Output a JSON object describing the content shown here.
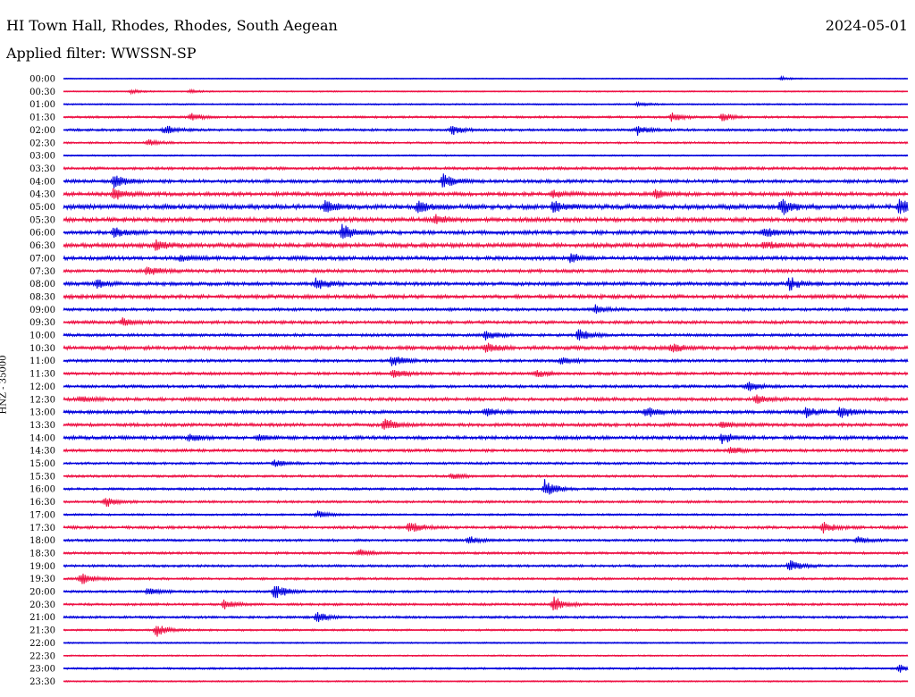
{
  "header": {
    "station": "HI Town Hall, Rhodes, Rhodes, South Aegean",
    "date": "2024-05-01",
    "filter": "Applied filter: WWSSN-SP"
  },
  "chart_data": {
    "type": "line",
    "ylabel": "HNZ - 35000",
    "xlabel": "",
    "title": "HI Town Hall, Rhodes, Rhodes, South Aegean",
    "colors": {
      "odd": "#0000dd",
      "even": "#ee1144"
    },
    "rows": [
      {
        "label": "00:00",
        "amp": 0.4,
        "events": [
          {
            "t": 0.85,
            "a": 1.5
          }
        ]
      },
      {
        "label": "00:30",
        "amp": 0.5,
        "events": [
          {
            "t": 0.08,
            "a": 1.5
          },
          {
            "t": 0.15,
            "a": 1.2
          }
        ]
      },
      {
        "label": "01:00",
        "amp": 0.6,
        "events": [
          {
            "t": 0.68,
            "a": 1.3
          }
        ]
      },
      {
        "label": "01:30",
        "amp": 0.9,
        "events": [
          {
            "t": 0.15,
            "a": 3
          },
          {
            "t": 0.72,
            "a": 3.5
          },
          {
            "t": 0.78,
            "a": 3
          }
        ]
      },
      {
        "label": "02:00",
        "amp": 1.0,
        "events": [
          {
            "t": 0.12,
            "a": 3.5
          },
          {
            "t": 0.46,
            "a": 4
          },
          {
            "t": 0.68,
            "a": 3.5
          }
        ]
      },
      {
        "label": "02:30",
        "amp": 0.8,
        "events": [
          {
            "t": 0.1,
            "a": 2.5
          }
        ]
      },
      {
        "label": "03:00",
        "amp": 0.6,
        "events": []
      },
      {
        "label": "03:30",
        "amp": 1.2,
        "events": []
      },
      {
        "label": "04:00",
        "amp": 1.4,
        "events": [
          {
            "t": 0.06,
            "a": 5
          },
          {
            "t": 0.45,
            "a": 6
          }
        ]
      },
      {
        "label": "04:30",
        "amp": 1.6,
        "events": [
          {
            "t": 0.06,
            "a": 5
          },
          {
            "t": 0.58,
            "a": 3
          },
          {
            "t": 0.7,
            "a": 3.5
          }
        ]
      },
      {
        "label": "05:00",
        "amp": 2.0,
        "events": [
          {
            "t": 0.31,
            "a": 5
          },
          {
            "t": 0.42,
            "a": 5
          },
          {
            "t": 0.58,
            "a": 4
          },
          {
            "t": 0.85,
            "a": 6
          },
          {
            "t": 0.99,
            "a": 6
          }
        ]
      },
      {
        "label": "05:30",
        "amp": 1.8,
        "events": [
          {
            "t": 0.44,
            "a": 4
          }
        ]
      },
      {
        "label": "06:00",
        "amp": 1.6,
        "events": [
          {
            "t": 0.06,
            "a": 4
          },
          {
            "t": 0.33,
            "a": 6
          },
          {
            "t": 0.83,
            "a": 4
          }
        ]
      },
      {
        "label": "06:30",
        "amp": 1.8,
        "events": [
          {
            "t": 0.11,
            "a": 4
          },
          {
            "t": 0.83,
            "a": 3
          }
        ]
      },
      {
        "label": "07:00",
        "amp": 1.6,
        "events": [
          {
            "t": 0.14,
            "a": 3
          },
          {
            "t": 0.6,
            "a": 3.5
          }
        ]
      },
      {
        "label": "07:30",
        "amp": 1.4,
        "events": [
          {
            "t": 0.1,
            "a": 4
          }
        ]
      },
      {
        "label": "08:00",
        "amp": 1.5,
        "events": [
          {
            "t": 0.04,
            "a": 3
          },
          {
            "t": 0.3,
            "a": 5
          },
          {
            "t": 0.86,
            "a": 5
          }
        ]
      },
      {
        "label": "08:30",
        "amp": 1.6,
        "events": []
      },
      {
        "label": "09:00",
        "amp": 1.2,
        "events": [
          {
            "t": 0.63,
            "a": 3
          }
        ]
      },
      {
        "label": "09:30",
        "amp": 1.3,
        "events": [
          {
            "t": 0.07,
            "a": 3
          }
        ]
      },
      {
        "label": "10:00",
        "amp": 1.2,
        "events": [
          {
            "t": 0.5,
            "a": 4
          },
          {
            "t": 0.61,
            "a": 4.5
          }
        ]
      },
      {
        "label": "10:30",
        "amp": 1.6,
        "events": [
          {
            "t": 0.5,
            "a": 4
          },
          {
            "t": 0.72,
            "a": 4
          }
        ]
      },
      {
        "label": "11:00",
        "amp": 1.2,
        "events": [
          {
            "t": 0.39,
            "a": 5
          },
          {
            "t": 0.59,
            "a": 3
          }
        ]
      },
      {
        "label": "11:30",
        "amp": 1.2,
        "events": [
          {
            "t": 0.39,
            "a": 4
          },
          {
            "t": 0.56,
            "a": 3
          }
        ]
      },
      {
        "label": "12:00",
        "amp": 1.2,
        "events": [
          {
            "t": 0.81,
            "a": 4
          }
        ]
      },
      {
        "label": "12:30",
        "amp": 1.4,
        "events": [
          {
            "t": 0.02,
            "a": 3
          },
          {
            "t": 0.82,
            "a": 4
          }
        ]
      },
      {
        "label": "13:00",
        "amp": 1.4,
        "events": [
          {
            "t": 0.5,
            "a": 3
          },
          {
            "t": 0.69,
            "a": 4
          },
          {
            "t": 0.88,
            "a": 4
          },
          {
            "t": 0.92,
            "a": 5
          }
        ]
      },
      {
        "label": "13:30",
        "amp": 1.4,
        "events": [
          {
            "t": 0.38,
            "a": 5
          },
          {
            "t": 0.78,
            "a": 3
          }
        ]
      },
      {
        "label": "14:00",
        "amp": 1.5,
        "events": [
          {
            "t": 0.15,
            "a": 3
          },
          {
            "t": 0.23,
            "a": 3
          },
          {
            "t": 0.78,
            "a": 4
          }
        ]
      },
      {
        "label": "14:30",
        "amp": 1.2,
        "events": [
          {
            "t": 0.79,
            "a": 3
          }
        ]
      },
      {
        "label": "15:00",
        "amp": 1.0,
        "events": [
          {
            "t": 0.25,
            "a": 3
          }
        ]
      },
      {
        "label": "15:30",
        "amp": 1.0,
        "events": [
          {
            "t": 0.46,
            "a": 2.5
          }
        ]
      },
      {
        "label": "16:00",
        "amp": 1.0,
        "events": [
          {
            "t": 0.57,
            "a": 7
          }
        ]
      },
      {
        "label": "16:30",
        "amp": 1.0,
        "events": [
          {
            "t": 0.05,
            "a": 4
          }
        ]
      },
      {
        "label": "17:00",
        "amp": 0.8,
        "events": [
          {
            "t": 0.3,
            "a": 3
          }
        ]
      },
      {
        "label": "17:30",
        "amp": 1.2,
        "events": [
          {
            "t": 0.41,
            "a": 5
          },
          {
            "t": 0.9,
            "a": 4
          }
        ]
      },
      {
        "label": "18:00",
        "amp": 1.0,
        "events": [
          {
            "t": 0.48,
            "a": 3
          },
          {
            "t": 0.94,
            "a": 3
          }
        ]
      },
      {
        "label": "18:30",
        "amp": 1.0,
        "events": [
          {
            "t": 0.35,
            "a": 3
          }
        ]
      },
      {
        "label": "19:00",
        "amp": 1.0,
        "events": [
          {
            "t": 0.86,
            "a": 5
          }
        ]
      },
      {
        "label": "19:30",
        "amp": 1.0,
        "events": [
          {
            "t": 0.02,
            "a": 5
          }
        ]
      },
      {
        "label": "20:00",
        "amp": 1.0,
        "events": [
          {
            "t": 0.1,
            "a": 3
          },
          {
            "t": 0.25,
            "a": 6
          }
        ]
      },
      {
        "label": "20:30",
        "amp": 1.0,
        "events": [
          {
            "t": 0.19,
            "a": 4
          },
          {
            "t": 0.58,
            "a": 6
          }
        ]
      },
      {
        "label": "21:00",
        "amp": 1.0,
        "events": [
          {
            "t": 0.3,
            "a": 4
          }
        ]
      },
      {
        "label": "21:30",
        "amp": 0.8,
        "events": [
          {
            "t": 0.11,
            "a": 5
          }
        ]
      },
      {
        "label": "22:00",
        "amp": 0.6,
        "events": []
      },
      {
        "label": "22:30",
        "amp": 0.6,
        "events": []
      },
      {
        "label": "23:00",
        "amp": 0.8,
        "events": [
          {
            "t": 0.99,
            "a": 3
          }
        ]
      },
      {
        "label": "23:30",
        "amp": 0.6,
        "events": []
      }
    ]
  }
}
